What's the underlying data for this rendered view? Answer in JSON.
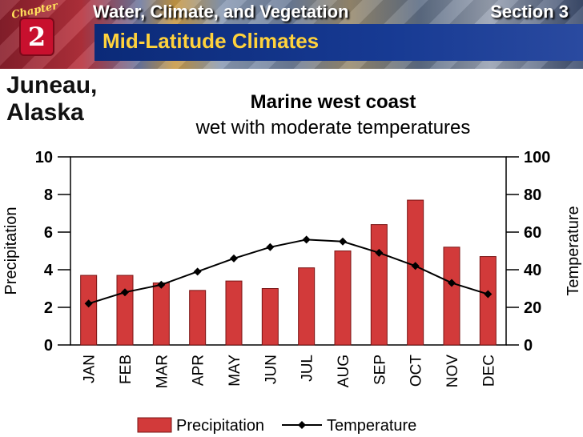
{
  "header": {
    "chapter_word": "Chapter",
    "chapter_number": "2",
    "title": "Water, Climate, and Vegetation",
    "section": "Section 3",
    "subtitle": "Mid-Latitude Climates"
  },
  "location": {
    "line1": "Juneau,",
    "line2": "Alaska"
  },
  "climate": {
    "type": "Marine west coast",
    "description": "wet with moderate temperatures"
  },
  "colors": {
    "bar_fill": "#d23a3a",
    "bar_edge": "#7a1414",
    "line": "#000000"
  },
  "chart_data": {
    "type": "bar",
    "categories": [
      "JAN",
      "FEB",
      "MAR",
      "APR",
      "MAY",
      "JUN",
      "JUL",
      "AUG",
      "SEP",
      "OCT",
      "NOV",
      "DEC"
    ],
    "series": [
      {
        "name": "Precipitation",
        "type": "bar",
        "axis": "left",
        "values": [
          3.7,
          3.7,
          3.3,
          2.9,
          3.4,
          3.0,
          4.1,
          5.0,
          6.4,
          7.7,
          5.2,
          4.7
        ]
      },
      {
        "name": "Temperature",
        "type": "line",
        "axis": "right",
        "values": [
          22,
          28,
          32,
          39,
          46,
          52,
          56,
          55,
          49,
          42,
          33,
          27
        ]
      }
    ],
    "ylabel": "Precipitation",
    "y2label": "Temperature",
    "ylim": [
      0,
      10
    ],
    "y2lim": [
      0,
      100
    ],
    "yticks": [
      "0",
      "2",
      "4",
      "6",
      "8",
      "10"
    ],
    "y2ticks": [
      "0",
      "20",
      "40",
      "60",
      "80",
      "100"
    ],
    "legend": [
      "Precipitation",
      "Temperature"
    ],
    "legend_position": "bottom",
    "grid": false
  }
}
